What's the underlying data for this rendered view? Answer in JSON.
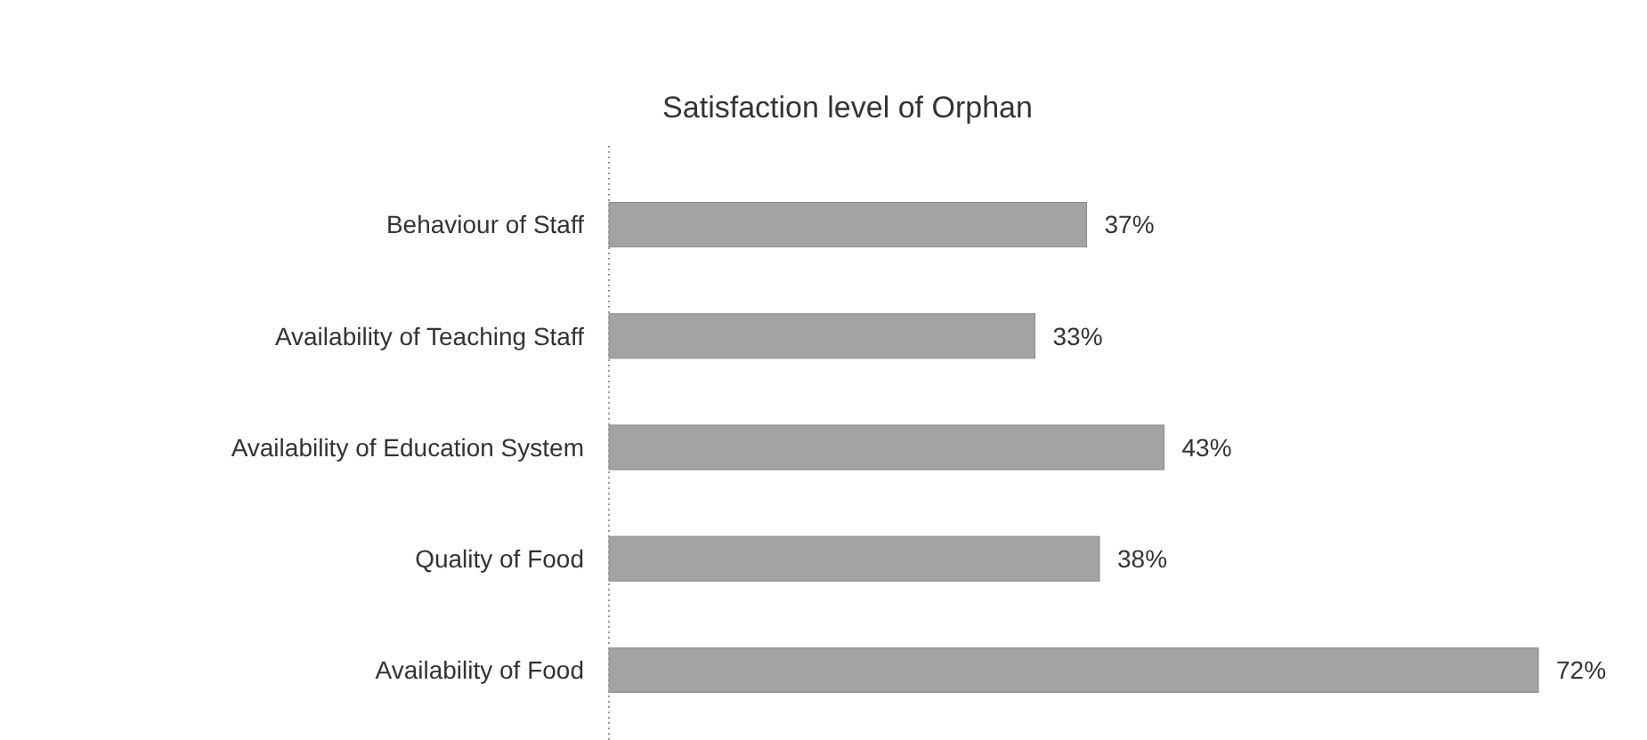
{
  "chart_data": {
    "type": "bar",
    "orientation": "horizontal",
    "title": "Satisfaction level of Orphan",
    "categories": [
      "Behaviour of Staff",
      "Availability of Teaching Staff",
      "Availability of Education System",
      "Quality of Food",
      "Availability of Food"
    ],
    "values": [
      37,
      33,
      43,
      38,
      72
    ],
    "color": "#a3a3a3",
    "value_labels": [
      "37%",
      "33%",
      "43%",
      "38%",
      "72%"
    ]
  }
}
